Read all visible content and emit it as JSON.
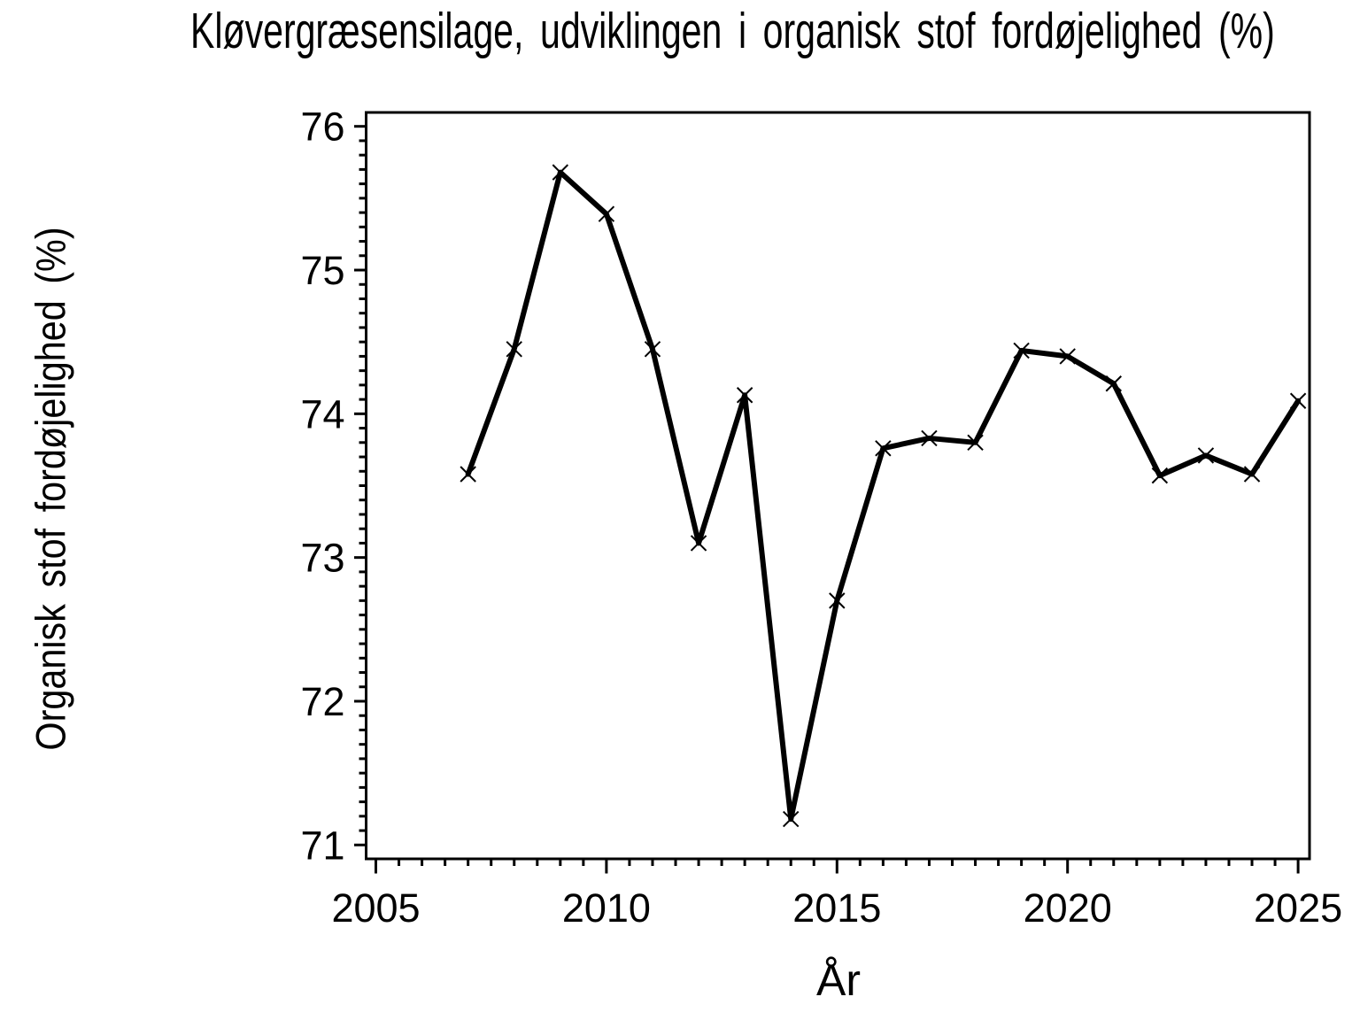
{
  "chart_data": {
    "type": "line",
    "title": "Kløvergræsensilage, udviklingen i organisk stof fordøjelighed (%)",
    "xlabel": "År",
    "ylabel": "Organisk stof fordøjelighed (%)",
    "series": [
      {
        "name": "Organisk stof fordøjelighed (%)",
        "x": [
          2007,
          2008,
          2009,
          2010,
          2011,
          2012,
          2013,
          2014,
          2015,
          2016,
          2017,
          2018,
          2019,
          2020,
          2021,
          2022,
          2023,
          2024,
          2025
        ],
        "values": [
          73.58,
          74.45,
          75.68,
          75.39,
          74.45,
          73.1,
          74.13,
          71.18,
          72.7,
          73.76,
          73.83,
          73.8,
          74.44,
          74.4,
          74.21,
          73.57,
          73.71,
          73.58,
          74.09
        ]
      }
    ],
    "xlim": [
      2005,
      2025
    ],
    "ylim": [
      71,
      76
    ],
    "x_major_ticks": [
      2005,
      2010,
      2015,
      2020,
      2025
    ],
    "y_major_ticks": [
      71,
      72,
      73,
      74,
      75,
      76
    ],
    "x_minor_step": 0.5,
    "y_minor_step": 0.1,
    "marker": "x",
    "grid": "off",
    "legend": "none",
    "line_color": "#000000",
    "background_color": "#ffffff"
  }
}
